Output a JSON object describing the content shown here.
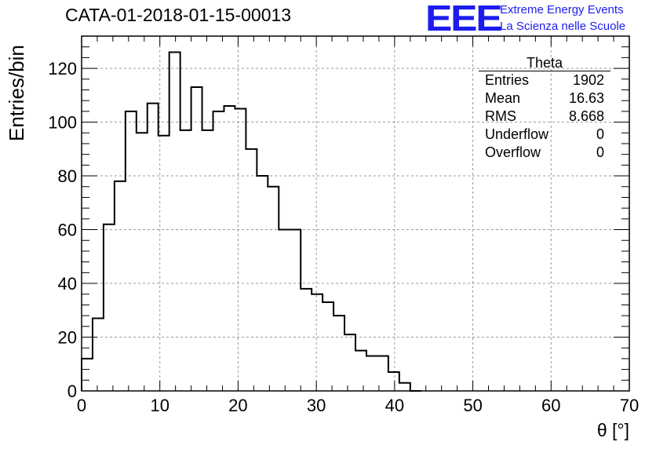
{
  "title": "CATA-01-2018-01-15-00013",
  "logo": {
    "mark": "EEE",
    "line1": "Extreme Energy Events",
    "line2": "La Scienza nelle Scuole",
    "color": "#1c1cf0"
  },
  "stats": {
    "name": "Theta",
    "rows": [
      {
        "label": "Entries",
        "value": "1902"
      },
      {
        "label": "Mean",
        "value": "16.63"
      },
      {
        "label": "RMS",
        "value": "8.668"
      },
      {
        "label": "Underflow",
        "value": "0"
      },
      {
        "label": "Overflow",
        "value": "0"
      }
    ]
  },
  "chart_data": {
    "type": "histogram",
    "title": "CATA-01-2018-01-15-00013",
    "xlabel": "θ [°]",
    "ylabel": "Entries/bin",
    "xlim": [
      0,
      70
    ],
    "ylim": [
      0,
      132
    ],
    "grid": true,
    "bin_width": 1.4,
    "bins": [
      {
        "x0": 0.0,
        "count": 12
      },
      {
        "x0": 1.4,
        "count": 27
      },
      {
        "x0": 2.8,
        "count": 62
      },
      {
        "x0": 4.2,
        "count": 78
      },
      {
        "x0": 5.6,
        "count": 104
      },
      {
        "x0": 7.0,
        "count": 96
      },
      {
        "x0": 8.4,
        "count": 107
      },
      {
        "x0": 9.8,
        "count": 95
      },
      {
        "x0": 11.2,
        "count": 126
      },
      {
        "x0": 12.6,
        "count": 97
      },
      {
        "x0": 14.0,
        "count": 113
      },
      {
        "x0": 15.4,
        "count": 97
      },
      {
        "x0": 16.8,
        "count": 104
      },
      {
        "x0": 18.2,
        "count": 106
      },
      {
        "x0": 19.6,
        "count": 105
      },
      {
        "x0": 21.0,
        "count": 90
      },
      {
        "x0": 22.4,
        "count": 80
      },
      {
        "x0": 23.8,
        "count": 76
      },
      {
        "x0": 25.2,
        "count": 60
      },
      {
        "x0": 26.6,
        "count": 60
      },
      {
        "x0": 28.0,
        "count": 38
      },
      {
        "x0": 29.4,
        "count": 36
      },
      {
        "x0": 30.8,
        "count": 33
      },
      {
        "x0": 32.2,
        "count": 28
      },
      {
        "x0": 33.6,
        "count": 21
      },
      {
        "x0": 35.0,
        "count": 15
      },
      {
        "x0": 36.4,
        "count": 13
      },
      {
        "x0": 37.8,
        "count": 13
      },
      {
        "x0": 39.2,
        "count": 7
      },
      {
        "x0": 40.6,
        "count": 3
      },
      {
        "x0": 42.0,
        "count": 0
      }
    ],
    "x_ticks": [
      0,
      10,
      20,
      30,
      40,
      50,
      60,
      70
    ],
    "y_ticks": [
      0,
      20,
      40,
      60,
      80,
      100,
      120
    ]
  }
}
